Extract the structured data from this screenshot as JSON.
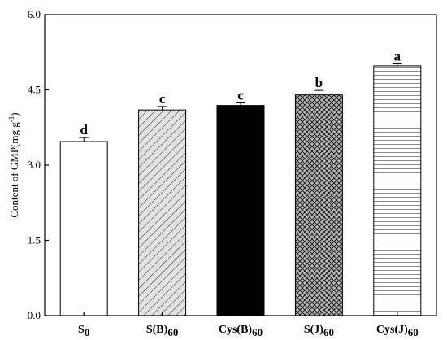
{
  "chart_data": {
    "type": "bar",
    "ylabel": "Content of GMP(mg g",
    "ylabel_sup": "-1",
    "ylabel_close": ")",
    "ylim": [
      0,
      6.0
    ],
    "yticks": [
      0.0,
      1.5,
      3.0,
      4.5,
      6.0
    ],
    "ytick_labels": [
      "0.0",
      "1.5",
      "3.0",
      "4.5",
      "6.0"
    ],
    "categories": [
      {
        "base": "S",
        "sub": "0"
      },
      {
        "base": "S(B)",
        "sub": "60"
      },
      {
        "base": "Cys(B)",
        "sub": "60"
      },
      {
        "base": "S(J)",
        "sub": "60"
      },
      {
        "base": "Cys(J)",
        "sub": "60"
      }
    ],
    "values": [
      3.47,
      4.1,
      4.19,
      4.4,
      4.98
    ],
    "errors": [
      0.08,
      0.07,
      0.05,
      0.09,
      0.04
    ],
    "significance": [
      "d",
      "c",
      "c",
      "b",
      "a"
    ],
    "fills": [
      "empty",
      "diagonal-hatch",
      "solid-black",
      "cross-hatch",
      "horizontal-lines"
    ],
    "grid": false,
    "legend": "none"
  }
}
